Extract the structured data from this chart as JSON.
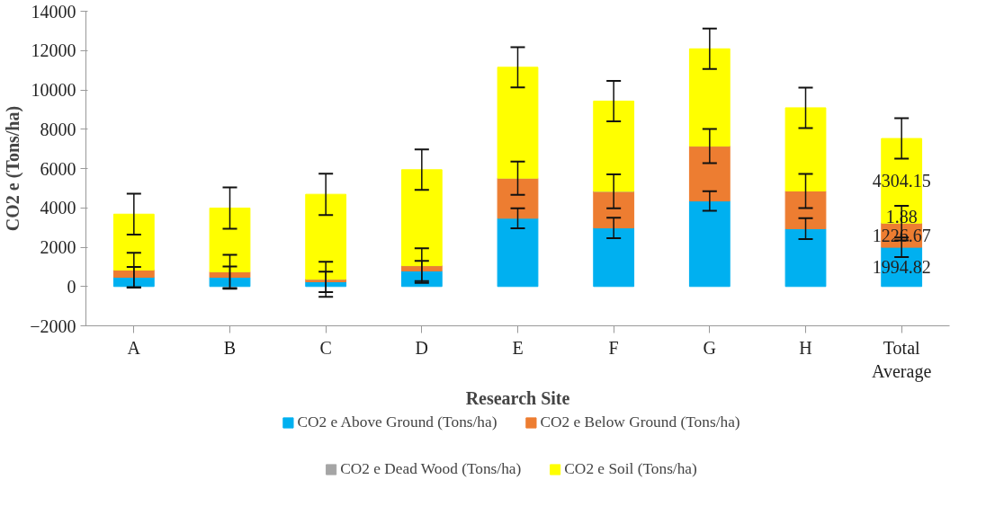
{
  "chart_data": {
    "type": "bar",
    "stacked": true,
    "xlabel": "Research Site",
    "ylabel": "CO2 e (Tons/ha)",
    "categories": [
      "A",
      "B",
      "C",
      "D",
      "E",
      "F",
      "G",
      "H",
      "Total Average"
    ],
    "ylim": [
      -2000,
      14000
    ],
    "yticks": [
      -2000,
      0,
      2000,
      4000,
      6000,
      8000,
      10000,
      12000,
      14000
    ],
    "grid": false,
    "legend": "bottom",
    "series": [
      {
        "name": "CO2 e Above Ground (Tons/ha)",
        "color": "#00b0f0",
        "values": [
          470,
          470,
          240,
          790,
          3470,
          2980,
          4350,
          2940,
          1994.82
        ],
        "errors": [
          530,
          550,
          520,
          510,
          510,
          520,
          500,
          530,
          500
        ],
        "value_labels": [
          null,
          null,
          null,
          null,
          null,
          null,
          null,
          null,
          "1994.82"
        ]
      },
      {
        "name": "CO2 e Below Ground (Tons/ha)",
        "color": "#ed7d31",
        "values": [
          370,
          280,
          130,
          270,
          2040,
          1860,
          2790,
          1920,
          1226.67
        ],
        "errors": [
          870,
          860,
          890,
          880,
          850,
          860,
          870,
          870,
          880
        ],
        "value_labels": [
          null,
          null,
          null,
          null,
          null,
          null,
          null,
          null,
          "1226.67"
        ]
      },
      {
        "name": "CO2 e Dead Wood (Tons/ha)",
        "color": "#a5a5a5",
        "values": [
          0,
          0,
          0,
          0,
          0,
          0,
          0,
          0,
          1.88
        ],
        "value_labels": [
          null,
          null,
          null,
          null,
          null,
          null,
          null,
          null,
          "1.88"
        ]
      },
      {
        "name": "CO2 e Soil (Tons/ha)",
        "color": "#ffff00",
        "values": [
          2840,
          3240,
          4320,
          4880,
          5640,
          4590,
          4950,
          4230,
          4304.15
        ],
        "errors": [
          1040,
          1050,
          1050,
          1030,
          1020,
          1030,
          1030,
          1030,
          1030
        ],
        "value_labels": [
          null,
          null,
          null,
          null,
          null,
          null,
          null,
          null,
          "4304.15"
        ]
      }
    ]
  }
}
